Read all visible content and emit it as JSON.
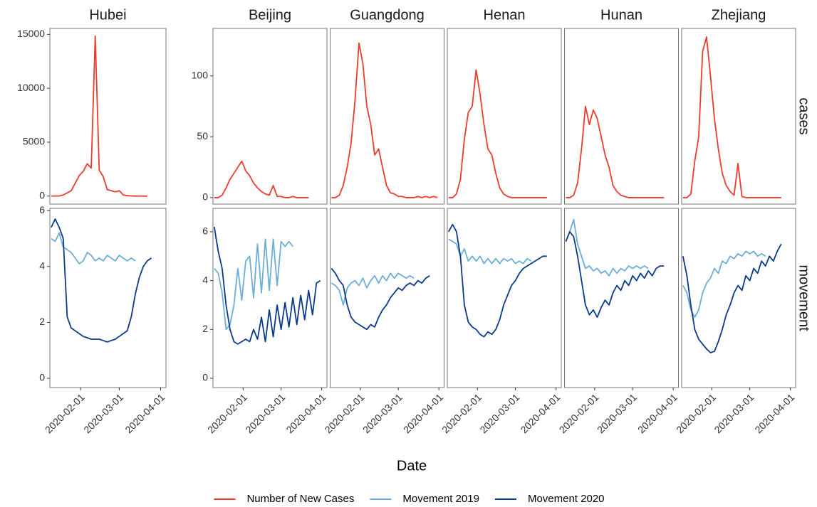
{
  "chart_data": {
    "type": "line",
    "x_label": "Date",
    "legend": "bottom",
    "x": [
      "2020-01-10",
      "2020-01-13",
      "2020-01-16",
      "2020-01-19",
      "2020-01-22",
      "2020-01-25",
      "2020-01-28",
      "2020-01-31",
      "2020-02-03",
      "2020-02-06",
      "2020-02-09",
      "2020-02-12",
      "2020-02-15",
      "2020-02-18",
      "2020-02-21",
      "2020-02-24",
      "2020-02-27",
      "2020-03-01",
      "2020-03-04",
      "2020-03-07",
      "2020-03-10",
      "2020-03-13",
      "2020-03-16",
      "2020-03-19",
      "2020-03-22",
      "2020-03-25",
      "2020-03-28",
      "2020-03-31"
    ],
    "xlim": [
      "2020-01-09",
      "2020-04-05"
    ],
    "xticks": [
      "2020-02-01",
      "2020-03-01",
      "2020-04-01"
    ],
    "rows": [
      {
        "label": "cases",
        "series": [
          {
            "name": "Number of New Cases",
            "color": "#ef3b2c"
          }
        ]
      },
      {
        "label": "movement",
        "series": [
          {
            "name": "Movement 2019",
            "color": "#6baed6"
          },
          {
            "name": "Movement 2020",
            "color": "#0b3a8c"
          }
        ]
      }
    ],
    "groups": [
      {
        "scales": [
          {
            "ylim": [
              -740,
              15550
            ],
            "yticks": [
              0,
              5000,
              10000,
              15000
            ]
          },
          {
            "ylim": [
              -0.33,
              6.08
            ],
            "yticks": [
              0,
              2,
              4,
              6
            ]
          }
        ],
        "facets": [
          {
            "title": "Hubei",
            "values": [
              [
                [
                  0,
                  10,
                  20,
                  100,
                  300,
                  500,
                  1200,
                  1900,
                  2300,
                  3000,
                  2600,
                  14840,
                  2400,
                  1800,
                  600,
                  500,
                  400,
                  500,
                  100,
                  40,
                  20,
                  5,
                  0,
                  0,
                  0,
                  null,
                  null,
                  null
                ]
              ],
              [
                [
                  5.0,
                  4.9,
                  5.2,
                  4.7,
                  4.6,
                  4.5,
                  4.3,
                  4.1,
                  4.2,
                  4.5,
                  4.4,
                  4.2,
                  4.3,
                  4.2,
                  4.4,
                  4.3,
                  4.2,
                  4.4,
                  4.3,
                  4.2,
                  4.3,
                  4.2,
                  null,
                  null,
                  null,
                  null,
                  null,
                  null
                ],
                [
                  5.4,
                  5.7,
                  5.4,
                  5.0,
                  2.2,
                  1.8,
                  1.7,
                  1.6,
                  1.5,
                  1.45,
                  1.4,
                  1.4,
                  1.4,
                  1.35,
                  1.3,
                  1.35,
                  1.4,
                  1.5,
                  1.6,
                  1.7,
                  2.2,
                  3.0,
                  3.6,
                  4.0,
                  4.2,
                  4.3,
                  null,
                  null
                ]
              ]
            ]
          }
        ]
      },
      {
        "scales": [
          {
            "ylim": [
              -5.3,
              139
            ],
            "yticks": [
              0,
              50,
              100
            ]
          },
          {
            "ylim": [
              -0.38,
              6.96
            ],
            "yticks": [
              0,
              2,
              4,
              6
            ]
          }
        ],
        "facets": [
          {
            "title": "Beijing",
            "values": [
              [
                [
                  0,
                  0,
                  2,
                  8,
                  15,
                  20,
                  25,
                  30,
                  22,
                  18,
                  12,
                  8,
                  5,
                  3,
                  2,
                  10,
                  1,
                  1,
                  0,
                  0,
                  1,
                  0,
                  0,
                  0,
                  0,
                  null,
                  null,
                  null
                ]
              ],
              [
                [
                  4.5,
                  4.3,
                  3.5,
                  2.0,
                  2.2,
                  3.0,
                  4.5,
                  3.2,
                  4.8,
                  5.0,
                  3.3,
                  5.5,
                  3.5,
                  5.7,
                  3.6,
                  5.7,
                  3.8,
                  5.6,
                  5.4,
                  5.6,
                  5.4,
                  null,
                  null,
                  null,
                  null,
                  null,
                  null,
                  null
                ],
                [
                  6.2,
                  5.2,
                  4.5,
                  3.0,
                  2.0,
                  1.5,
                  1.4,
                  1.5,
                  1.6,
                  1.5,
                  2.0,
                  1.6,
                  2.5,
                  1.5,
                  2.8,
                  1.7,
                  3.0,
                  2.0,
                  3.1,
                  2.1,
                  3.3,
                  2.2,
                  3.4,
                  2.4,
                  3.6,
                  2.6,
                  3.9,
                  4.0
                ]
              ]
            ]
          },
          {
            "title": "Guangdong",
            "values": [
              [
                [
                  0,
                  0,
                  2,
                  10,
                  25,
                  45,
                  80,
                  127,
                  110,
                  75,
                  60,
                  35,
                  40,
                  25,
                  10,
                  4,
                  3,
                  1,
                  1,
                  0,
                  0,
                  0,
                  1,
                  0,
                  1,
                  0,
                  1,
                  0
                ]
              ],
              [
                [
                  3.9,
                  3.8,
                  3.6,
                  3.0,
                  3.7,
                  3.9,
                  4.0,
                  3.8,
                  4.1,
                  3.7,
                  4.0,
                  4.2,
                  3.9,
                  4.2,
                  4.0,
                  4.3,
                  4.1,
                  4.3,
                  4.2,
                  4.1,
                  4.2,
                  4.1,
                  null,
                  null,
                  null,
                  null,
                  null,
                  null
                ],
                [
                  4.5,
                  4.3,
                  4.0,
                  3.8,
                  3.0,
                  2.5,
                  2.3,
                  2.2,
                  2.1,
                  2.0,
                  2.2,
                  2.1,
                  2.5,
                  2.8,
                  3.0,
                  3.3,
                  3.5,
                  3.7,
                  3.6,
                  3.8,
                  3.9,
                  3.8,
                  4.0,
                  3.9,
                  4.1,
                  4.2,
                  null,
                  null
                ]
              ]
            ]
          },
          {
            "title": "Henan",
            "values": [
              [
                [
                  0,
                  0,
                  3,
                  15,
                  48,
                  70,
                  75,
                  105,
                  85,
                  60,
                  40,
                  35,
                  20,
                  8,
                  3,
                  1,
                  0,
                  0,
                  0,
                  0,
                  0,
                  0,
                  0,
                  0,
                  0,
                  0,
                  null,
                  null
                ]
              ],
              [
                [
                  5.7,
                  5.6,
                  5.5,
                  5.0,
                  5.3,
                  4.8,
                  5.0,
                  4.8,
                  5.0,
                  4.7,
                  4.9,
                  4.7,
                  4.9,
                  4.7,
                  4.9,
                  4.8,
                  4.9,
                  4.7,
                  4.8,
                  4.7,
                  4.9,
                  4.8,
                  null,
                  null,
                  null,
                  null,
                  null,
                  null
                ],
                [
                  6.0,
                  6.3,
                  6.0,
                  5.0,
                  3.0,
                  2.3,
                  2.1,
                  2.0,
                  1.8,
                  1.7,
                  1.9,
                  1.8,
                  2.0,
                  2.4,
                  3.0,
                  3.4,
                  3.8,
                  4.0,
                  4.3,
                  4.5,
                  4.6,
                  4.7,
                  4.8,
                  4.9,
                  5.0,
                  5.0,
                  null,
                  null
                ]
              ]
            ]
          },
          {
            "title": "Hunan",
            "values": [
              [
                [
                  0,
                  0,
                  2,
                  12,
                  40,
                  75,
                  60,
                  72,
                  65,
                  50,
                  35,
                  25,
                  10,
                  5,
                  2,
                  1,
                  0,
                  0,
                  0,
                  0,
                  0,
                  0,
                  0,
                  0,
                  0,
                  0,
                  null,
                  null
                ]
              ],
              [
                [
                  5.6,
                  6.0,
                  6.5,
                  5.5,
                  5.0,
                  4.5,
                  4.6,
                  4.4,
                  4.5,
                  4.3,
                  4.4,
                  4.2,
                  4.5,
                  4.3,
                  4.5,
                  4.4,
                  4.6,
                  4.5,
                  4.6,
                  4.5,
                  4.6,
                  4.5,
                  null,
                  null,
                  null,
                  null,
                  null,
                  null
                ],
                [
                  5.6,
                  6.0,
                  5.8,
                  5.0,
                  4.0,
                  3.0,
                  2.6,
                  2.8,
                  2.5,
                  2.9,
                  3.2,
                  3.0,
                  3.5,
                  3.8,
                  3.6,
                  4.0,
                  3.8,
                  4.2,
                  4.0,
                  4.3,
                  4.1,
                  4.4,
                  4.2,
                  4.5,
                  4.6,
                  4.6,
                  null,
                  null
                ]
              ]
            ]
          },
          {
            "title": "Zhejiang",
            "values": [
              [
                [
                  0,
                  0,
                  3,
                  30,
                  50,
                  120,
                  132,
                  100,
                  65,
                  40,
                  20,
                  10,
                  5,
                  2,
                  28,
                  1,
                  0,
                  0,
                  0,
                  0,
                  0,
                  0,
                  0,
                  0,
                  0,
                  0,
                  null,
                  null
                ]
              ],
              [
                [
                  3.8,
                  3.5,
                  2.8,
                  2.5,
                  2.8,
                  3.5,
                  3.9,
                  4.1,
                  4.5,
                  4.3,
                  4.8,
                  4.7,
                  5.0,
                  4.9,
                  5.1,
                  5.0,
                  5.2,
                  5.1,
                  5.2,
                  5.0,
                  5.1,
                  5.0,
                  null,
                  null,
                  null,
                  null,
                  null,
                  null
                ],
                [
                  5.0,
                  4.2,
                  3.0,
                  2.0,
                  1.6,
                  1.4,
                  1.2,
                  1.05,
                  1.1,
                  1.5,
                  2.0,
                  2.6,
                  3.0,
                  3.5,
                  3.8,
                  3.6,
                  4.2,
                  4.0,
                  4.5,
                  4.3,
                  4.8,
                  4.6,
                  5.0,
                  4.8,
                  5.2,
                  5.5,
                  null,
                  null
                ]
              ]
            ]
          }
        ]
      }
    ]
  }
}
